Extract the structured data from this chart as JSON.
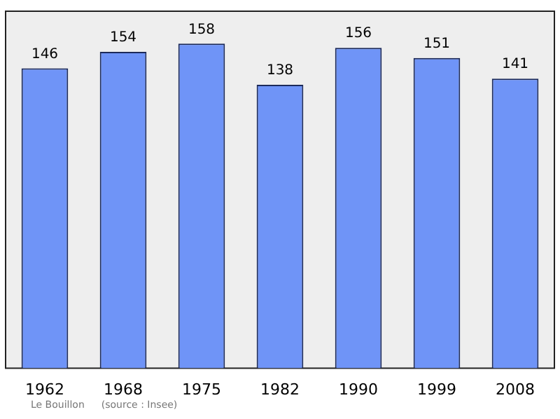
{
  "chart_data": {
    "type": "bar",
    "categories": [
      "1962",
      "1968",
      "1975",
      "1982",
      "1990",
      "1999",
      "2008"
    ],
    "values": [
      146,
      154,
      158,
      138,
      156,
      151,
      141
    ],
    "color": "#6f94f7",
    "data_labels": true,
    "grid": false,
    "legend": false,
    "annotations": [
      "Le Bouillon",
      "(source : Insee)"
    ]
  }
}
